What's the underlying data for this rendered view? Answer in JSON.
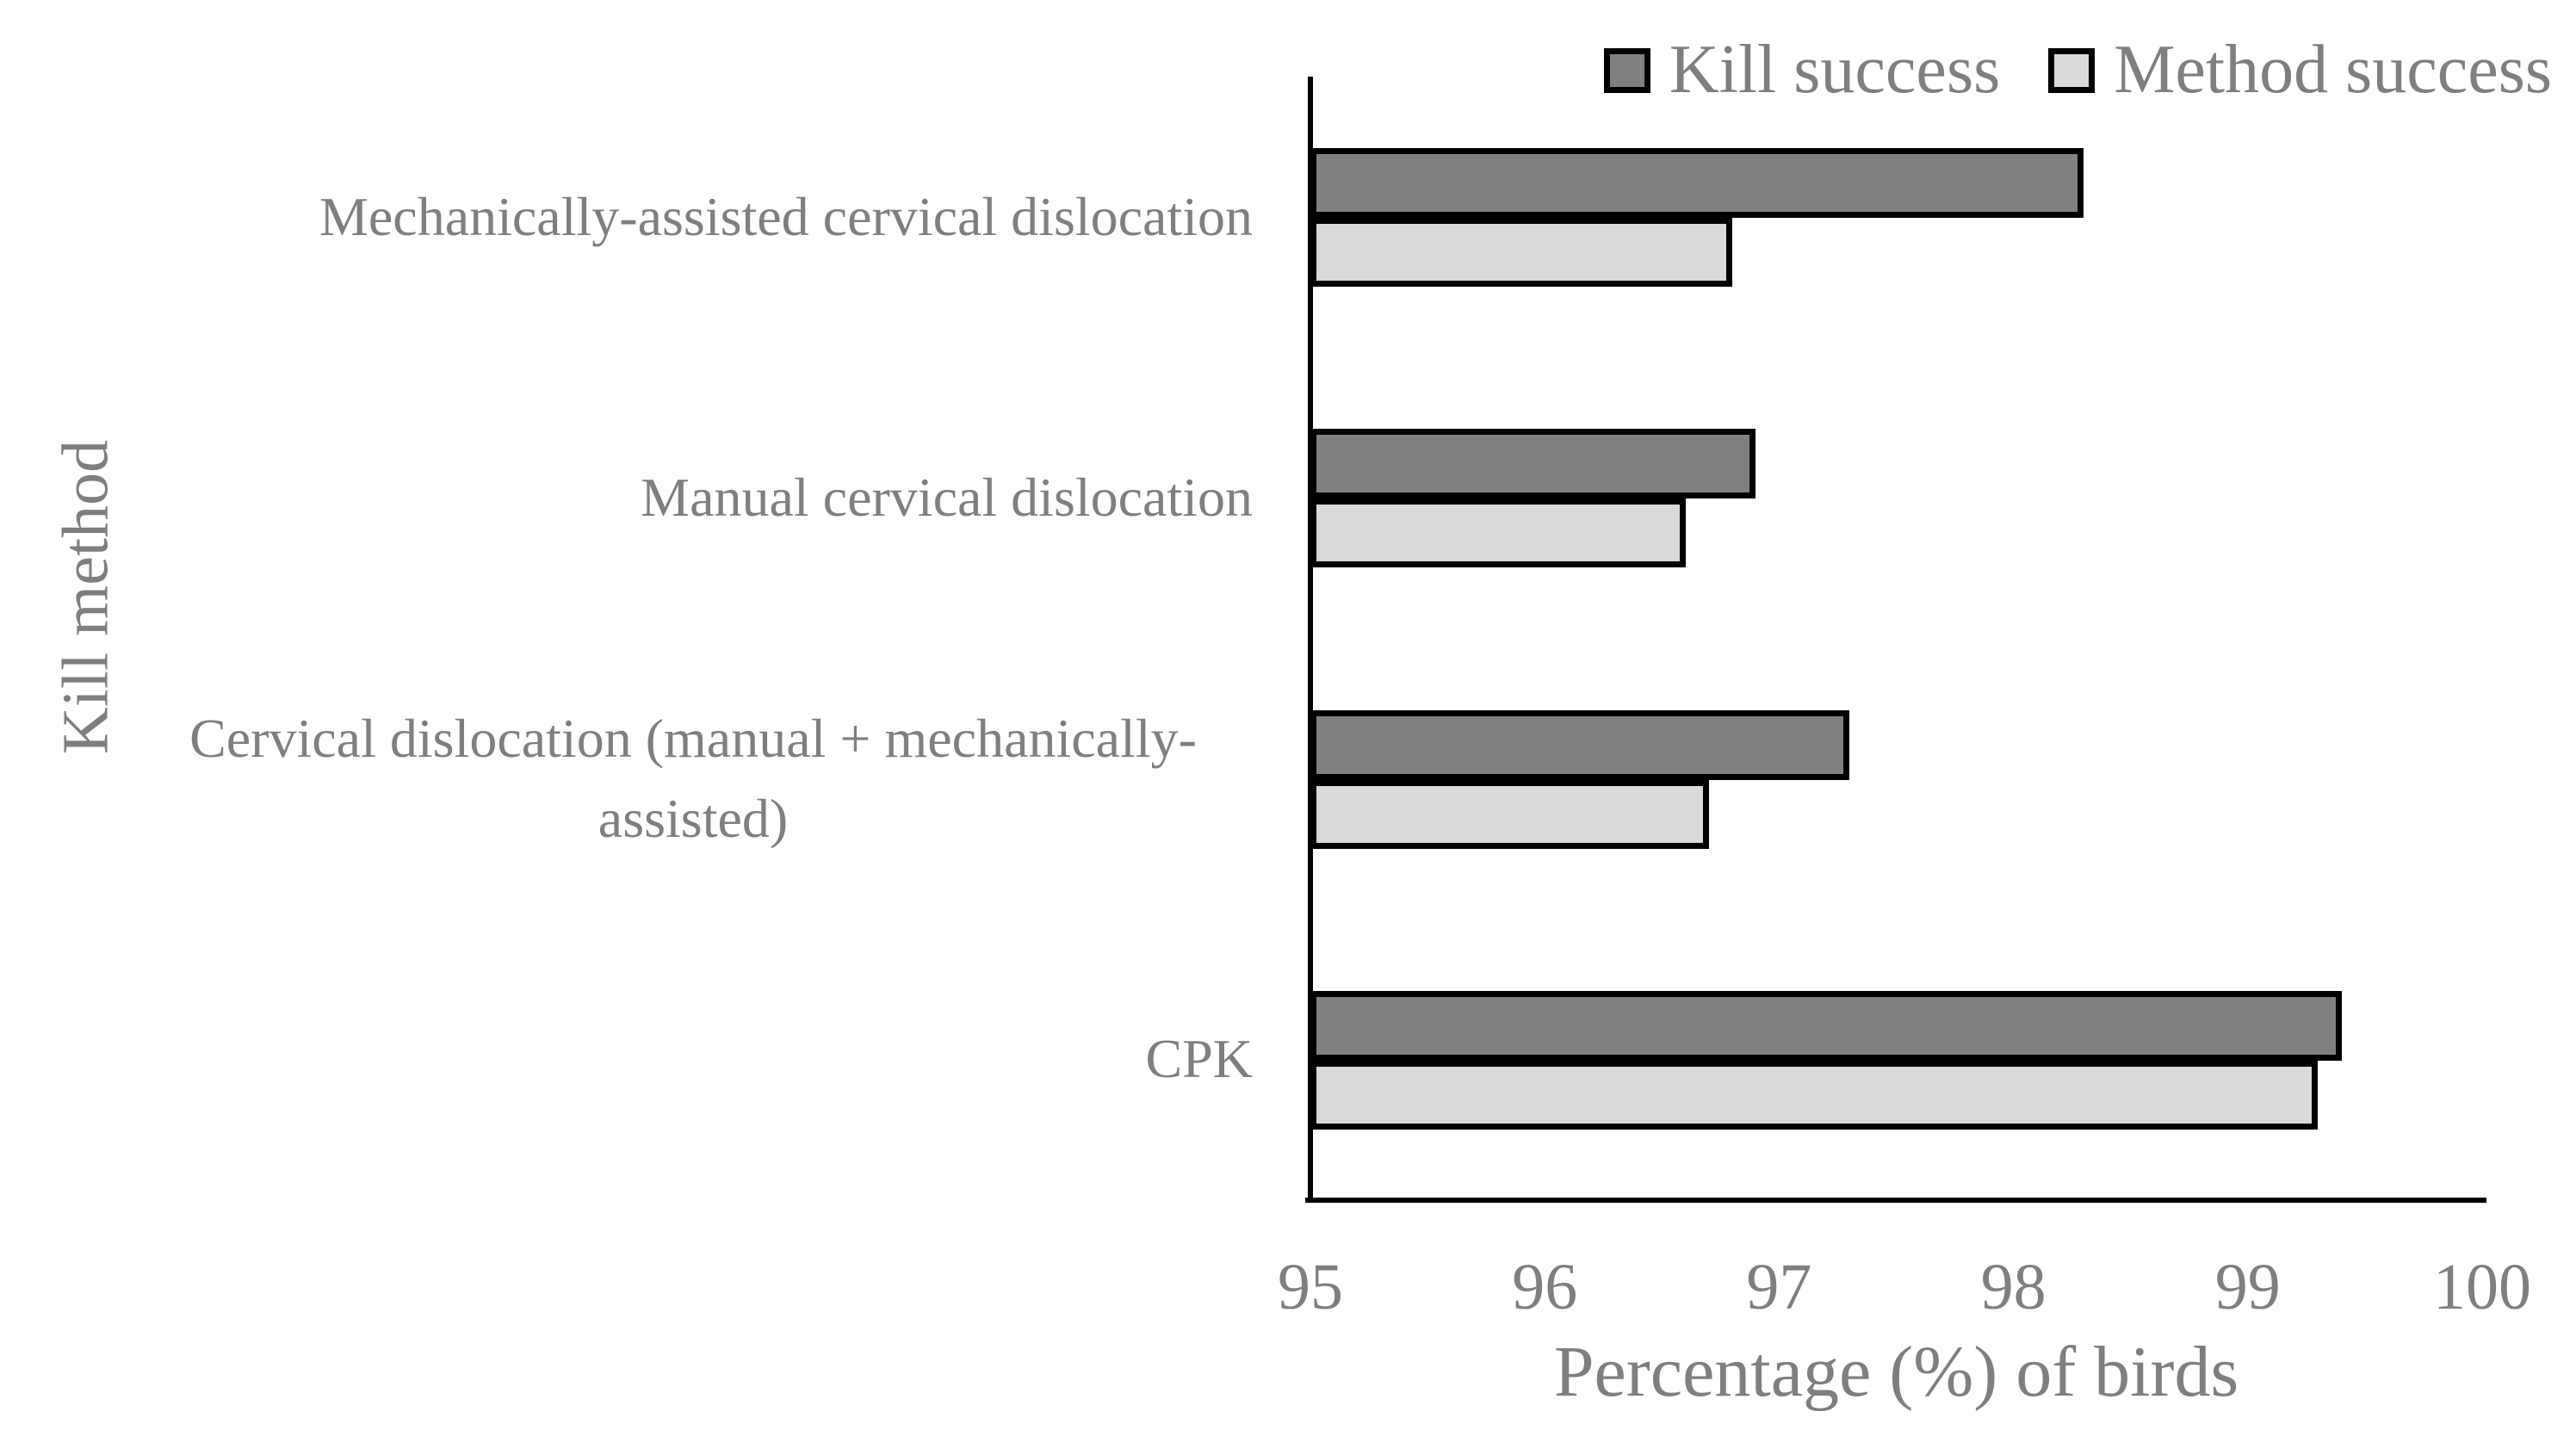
{
  "chart_data": {
    "type": "bar",
    "orientation": "horizontal",
    "title": "",
    "xlabel": "Percentage (%) of birds",
    "ylabel": "Kill method",
    "xlim": [
      95,
      100
    ],
    "xticks": [
      "95",
      "96",
      "97",
      "98",
      "99",
      "100"
    ],
    "grid": false,
    "legend_position": "top-right",
    "categories": [
      "Mechanically-assisted cervical dislocation",
      "Manual cervical dislocation",
      "Cervical dislocation (manual + mechanically-assisted)",
      "CPK"
    ],
    "series": [
      {
        "name": "Kill success",
        "color": "#808080",
        "values": [
          98.3,
          96.9,
          97.3,
          99.4
        ]
      },
      {
        "name": "Method success",
        "color": "#d9d9d9",
        "values": [
          96.8,
          96.6,
          96.7,
          99.3
        ]
      }
    ],
    "bar_border_color": "#000000",
    "axis_color": "#000000",
    "text_color": "#7f7f7f",
    "background_color": "#ffffff"
  }
}
